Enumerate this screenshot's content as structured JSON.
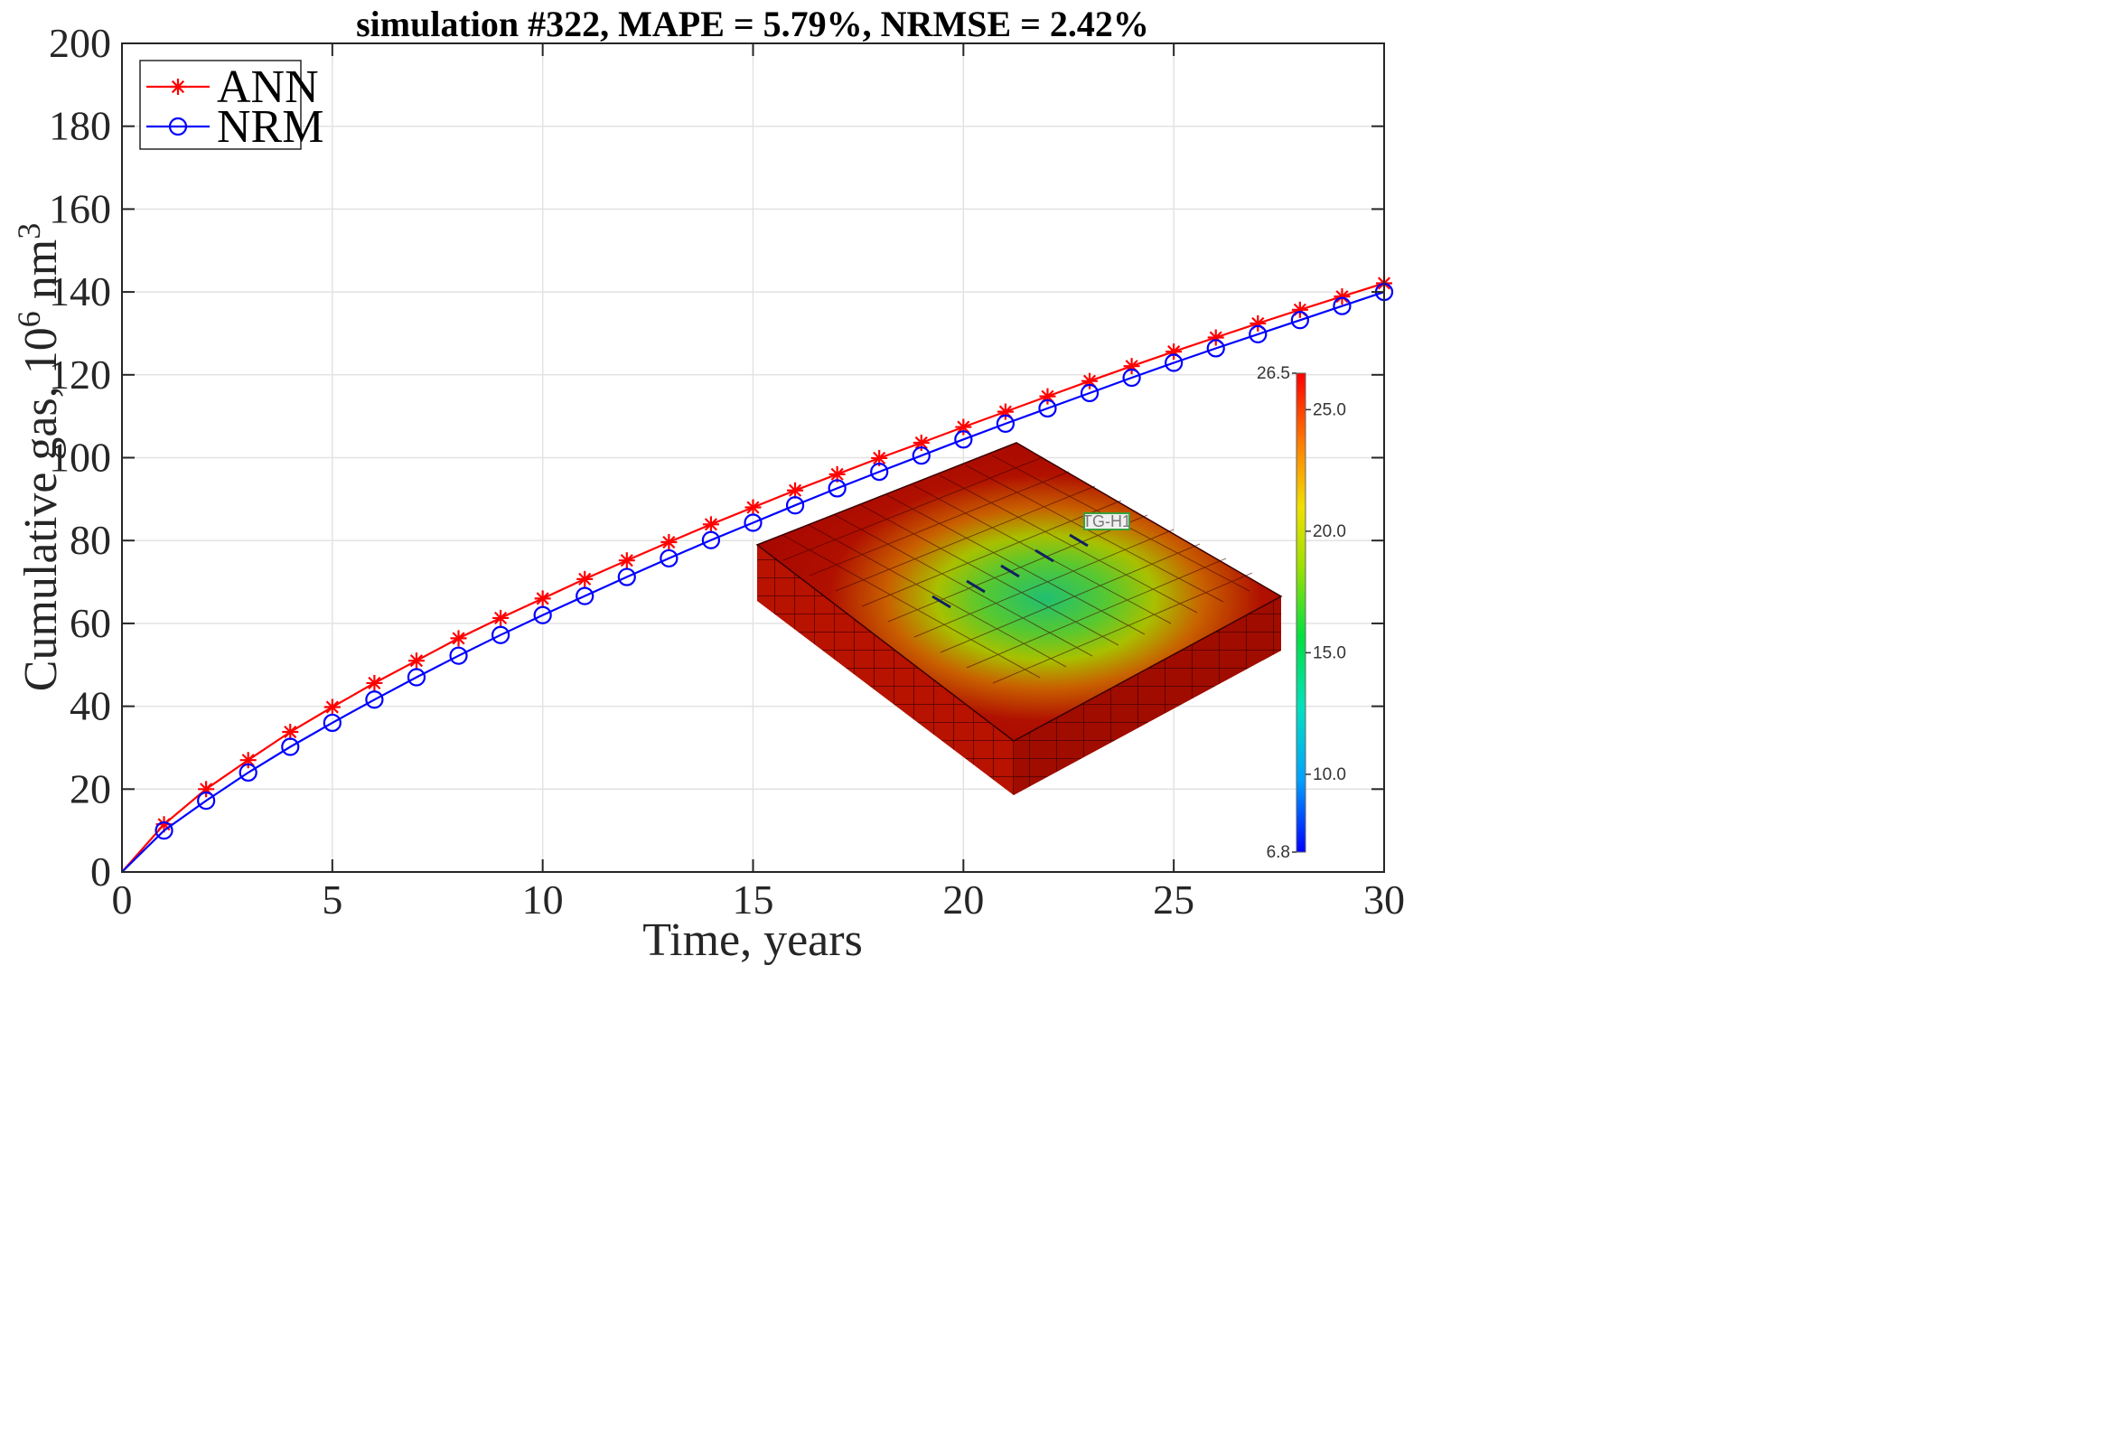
{
  "chart_data": {
    "type": "line",
    "title": "simulation #322, MAPE = 5.79%, NRMSE = 2.42%",
    "xlabel": "Time, years",
    "ylabel_main": "Cumulative gas, 10",
    "ylabel_sup1": "6",
    "ylabel_mid": " nm",
    "ylabel_sup2": "3",
    "xlim": [
      0,
      30
    ],
    "ylim": [
      0,
      200
    ],
    "xticks": [
      0,
      5,
      10,
      15,
      20,
      25,
      30
    ],
    "yticks": [
      0,
      20,
      40,
      60,
      80,
      100,
      120,
      140,
      160,
      180,
      200
    ],
    "grid": true,
    "legend_position": "top-left",
    "series": [
      {
        "name": "ANN",
        "color": "#ff0000",
        "marker": "asterisk",
        "x": [
          0,
          1,
          2,
          3,
          4,
          5,
          6,
          7,
          8,
          9,
          10,
          11,
          12,
          13,
          14,
          15,
          16,
          17,
          18,
          19,
          20,
          21,
          22,
          23,
          24,
          25,
          26,
          27,
          28,
          29,
          30
        ],
        "values": [
          0,
          11.5,
          20,
          27,
          33.8,
          39.8,
          45.6,
          51,
          56.4,
          61.3,
          66,
          70.7,
          75.2,
          79.6,
          83.9,
          88,
          92.1,
          96,
          99.9,
          103.6,
          107.4,
          111.1,
          114.8,
          118.5,
          122.1,
          125.6,
          129,
          132.4,
          135.7,
          138.9,
          142.1
        ]
      },
      {
        "name": "NRM",
        "color": "#0000ff",
        "marker": "circle",
        "x": [
          0,
          1,
          2,
          3,
          4,
          5,
          6,
          7,
          8,
          9,
          10,
          11,
          12,
          13,
          14,
          15,
          16,
          17,
          18,
          19,
          20,
          21,
          22,
          23,
          24,
          25,
          26,
          27,
          28,
          29,
          30
        ],
        "values": [
          0,
          10,
          17.2,
          24,
          30.2,
          36,
          41.6,
          47,
          52.2,
          57.2,
          62,
          66.6,
          71.2,
          75.7,
          80.1,
          84.3,
          88.5,
          92.6,
          96.6,
          100.5,
          104.4,
          108.2,
          111.9,
          115.6,
          119.3,
          122.9,
          126.4,
          129.8,
          133.2,
          136.6,
          140
        ]
      }
    ],
    "inset": {
      "description_tag": "reservoir-grid-model",
      "well_label": "TG-H1",
      "colorbar": {
        "ticks": [
          "26.5",
          "25.0",
          "20.0",
          "15.0",
          "10.0",
          "6.8"
        ],
        "tick_values": [
          26.5,
          25.0,
          20.0,
          15.0,
          10.0,
          6.8
        ],
        "min": 6.8,
        "max": 26.5,
        "colors": [
          "#0000ff",
          "#00c8ff",
          "#00e080",
          "#30e000",
          "#e0e000",
          "#ff8000",
          "#ff0000"
        ]
      }
    }
  }
}
